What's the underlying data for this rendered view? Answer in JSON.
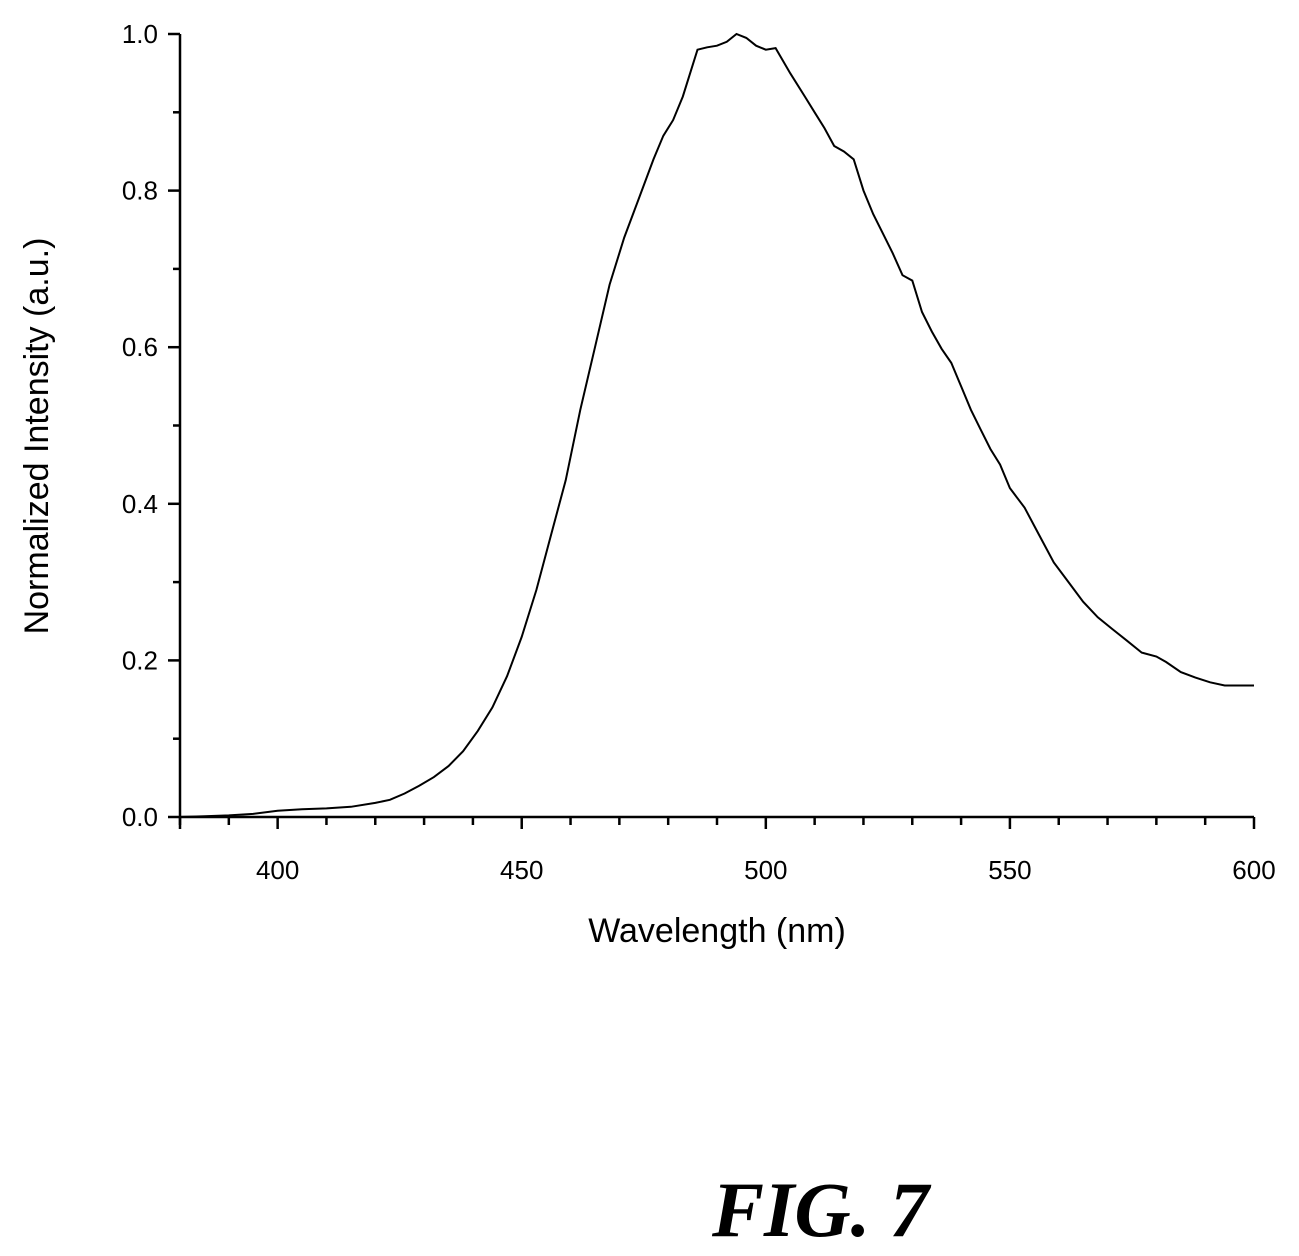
{
  "figure_label": "FIG. 7",
  "chart_data": {
    "type": "line",
    "title": "",
    "xlabel": "Wavelength (nm)",
    "ylabel": "Normalized Intensity (a.u.)",
    "xlim": [
      380,
      600
    ],
    "ylim": [
      0,
      1.0
    ],
    "x_ticks": [
      "400",
      "450",
      "500",
      "550",
      "600"
    ],
    "y_ticks": [
      "0.0",
      "0.2",
      "0.4",
      "0.6",
      "0.8",
      "1.0"
    ],
    "grid": false,
    "legend": "none",
    "line_color": "#000000",
    "series": [
      {
        "x": [
          380,
          385,
          390,
          395,
          400,
          405,
          410,
          415,
          420,
          423,
          426,
          429,
          432,
          435,
          438,
          441,
          444,
          447,
          450,
          453,
          456,
          459,
          462,
          465,
          468,
          471,
          474,
          477,
          479,
          481,
          483,
          485,
          486,
          488,
          490,
          492,
          494,
          496,
          498,
          500,
          502,
          505,
          508,
          510,
          512,
          514,
          516,
          518,
          520,
          522,
          524,
          526,
          528,
          530,
          532,
          534,
          536,
          538,
          540,
          542,
          544,
          546,
          548,
          550,
          553,
          556,
          559,
          562,
          565,
          568,
          571,
          574,
          577,
          580,
          582,
          585,
          588,
          591,
          594,
          597,
          600
        ],
        "y": [
          0.0,
          0.001,
          0.002,
          0.004,
          0.008,
          0.01,
          0.011,
          0.013,
          0.018,
          0.022,
          0.03,
          0.04,
          0.051,
          0.065,
          0.084,
          0.11,
          0.14,
          0.18,
          0.23,
          0.29,
          0.36,
          0.43,
          0.52,
          0.6,
          0.68,
          0.74,
          0.79,
          0.84,
          0.87,
          0.89,
          0.92,
          0.96,
          0.98,
          0.983,
          0.985,
          0.99,
          1.0,
          0.995,
          0.985,
          0.98,
          0.982,
          0.95,
          0.92,
          0.9,
          0.88,
          0.857,
          0.85,
          0.84,
          0.8,
          0.77,
          0.745,
          0.72,
          0.692,
          0.685,
          0.645,
          0.62,
          0.598,
          0.58,
          0.55,
          0.52,
          0.495,
          0.47,
          0.45,
          0.42,
          0.395,
          0.36,
          0.325,
          0.3,
          0.275,
          0.255,
          0.24,
          0.225,
          0.21,
          0.205,
          0.198,
          0.185,
          0.178,
          0.172,
          0.168,
          0.168,
          0.168
        ]
      }
    ]
  }
}
